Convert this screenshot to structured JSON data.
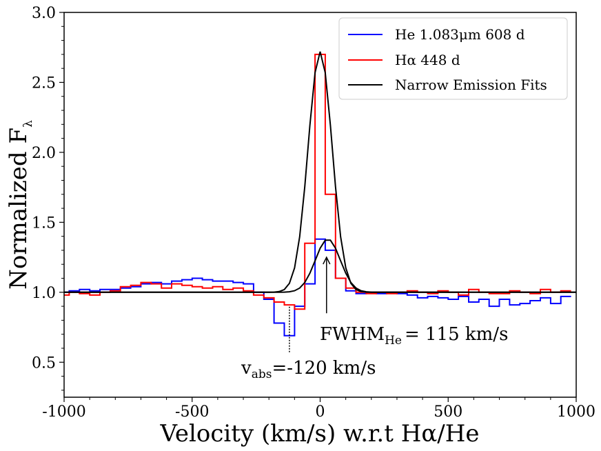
{
  "chart_data": {
    "type": "line",
    "title": "",
    "xlabel": "Velocity (km/s) w.r.t Hα/He",
    "ylabel": "Normalized F",
    "ylabel_sub": "λ",
    "xlim": [
      -1000,
      1000
    ],
    "ylim": [
      0.25,
      3.0
    ],
    "xticks": [
      -1000,
      -500,
      0,
      500,
      1000
    ],
    "xtick_labels": [
      "-1000",
      "-500",
      "0",
      "500",
      "1000"
    ],
    "yticks": [
      0.5,
      1.0,
      1.5,
      2.0,
      2.5,
      3.0
    ],
    "ytick_labels": [
      "0.5",
      "1.0",
      "1.5",
      "2.0",
      "2.5",
      "3.0"
    ],
    "legend": {
      "position": "top-right",
      "entries": [
        {
          "label": "He 1.083μm 608 d",
          "color": "#0000ff"
        },
        {
          "label": "Hα 448 d",
          "color": "#ff0000"
        },
        {
          "label": "Narrow Emission Fits",
          "color": "#000000"
        }
      ]
    },
    "series": [
      {
        "name": "He 1.083μm 608 d",
        "color": "#0000ff",
        "style": "steps",
        "x": [
          -1000,
          -960,
          -920,
          -880,
          -840,
          -800,
          -760,
          -720,
          -680,
          -640,
          -600,
          -560,
          -520,
          -480,
          -440,
          -400,
          -360,
          -320,
          -280,
          -240,
          -200,
          -160,
          -120,
          -80,
          -40,
          0,
          40,
          80,
          120,
          160,
          200,
          240,
          280,
          320,
          360,
          400,
          440,
          480,
          520,
          560,
          600,
          640,
          680,
          720,
          760,
          800,
          840,
          880,
          920,
          960
        ],
        "y": [
          1.0,
          1.01,
          1.02,
          1.01,
          1.02,
          1.02,
          1.03,
          1.04,
          1.06,
          1.07,
          1.06,
          1.08,
          1.09,
          1.1,
          1.09,
          1.08,
          1.08,
          1.07,
          1.06,
          1.0,
          0.95,
          0.78,
          0.69,
          0.9,
          1.06,
          1.38,
          1.3,
          1.1,
          1.01,
          0.99,
          1.0,
          0.99,
          1.0,
          0.99,
          0.98,
          0.96,
          0.97,
          0.96,
          0.95,
          0.97,
          0.93,
          0.95,
          0.9,
          0.95,
          0.91,
          0.92,
          0.94,
          0.96,
          0.92,
          0.97
        ]
      },
      {
        "name": "Hα 448 d",
        "color": "#ff0000",
        "style": "steps",
        "x": [
          -1000,
          -960,
          -920,
          -880,
          -840,
          -800,
          -760,
          -720,
          -680,
          -640,
          -600,
          -560,
          -520,
          -480,
          -440,
          -400,
          -360,
          -320,
          -280,
          -240,
          -200,
          -160,
          -120,
          -80,
          -40,
          0,
          40,
          80,
          120,
          160,
          200,
          240,
          280,
          320,
          360,
          400,
          440,
          480,
          520,
          560,
          600,
          640,
          680,
          720,
          760,
          800,
          840,
          880,
          920,
          960
        ],
        "y": [
          0.98,
          1.0,
          0.99,
          0.98,
          1.0,
          1.01,
          1.04,
          1.05,
          1.07,
          1.06,
          1.03,
          1.06,
          1.05,
          1.04,
          1.03,
          1.04,
          1.02,
          1.03,
          1.01,
          0.98,
          0.96,
          0.93,
          0.91,
          0.88,
          1.35,
          2.7,
          1.7,
          1.1,
          1.03,
          1.0,
          0.99,
          1.0,
          0.99,
          1.0,
          1.01,
          1.0,
          0.99,
          1.01,
          1.0,
          0.98,
          1.02,
          1.0,
          0.99,
          0.99,
          1.01,
          1.0,
          0.99,
          1.02,
          1.0,
          1.01
        ]
      },
      {
        "name": "Narrow Emission Fits",
        "color": "#000000",
        "style": "gaussian",
        "baseline": 1.0,
        "components": [
          {
            "center": 0,
            "amplitude": 1.72,
            "fwhm": 110
          },
          {
            "center": 30,
            "amplitude": 0.38,
            "fwhm": 115
          }
        ]
      }
    ],
    "annotations": [
      {
        "text": "FWHM",
        "sub": "He",
        "value": "= 115 km/s",
        "arrow_x": 25,
        "arrow_from_y": 0.85,
        "arrow_to_y": 1.25
      },
      {
        "text": "v",
        "sub": "abs",
        "value": "=-120 km/s",
        "line_x": -120,
        "line_from_y": 0.68,
        "line_to_y": 0.9
      }
    ]
  }
}
